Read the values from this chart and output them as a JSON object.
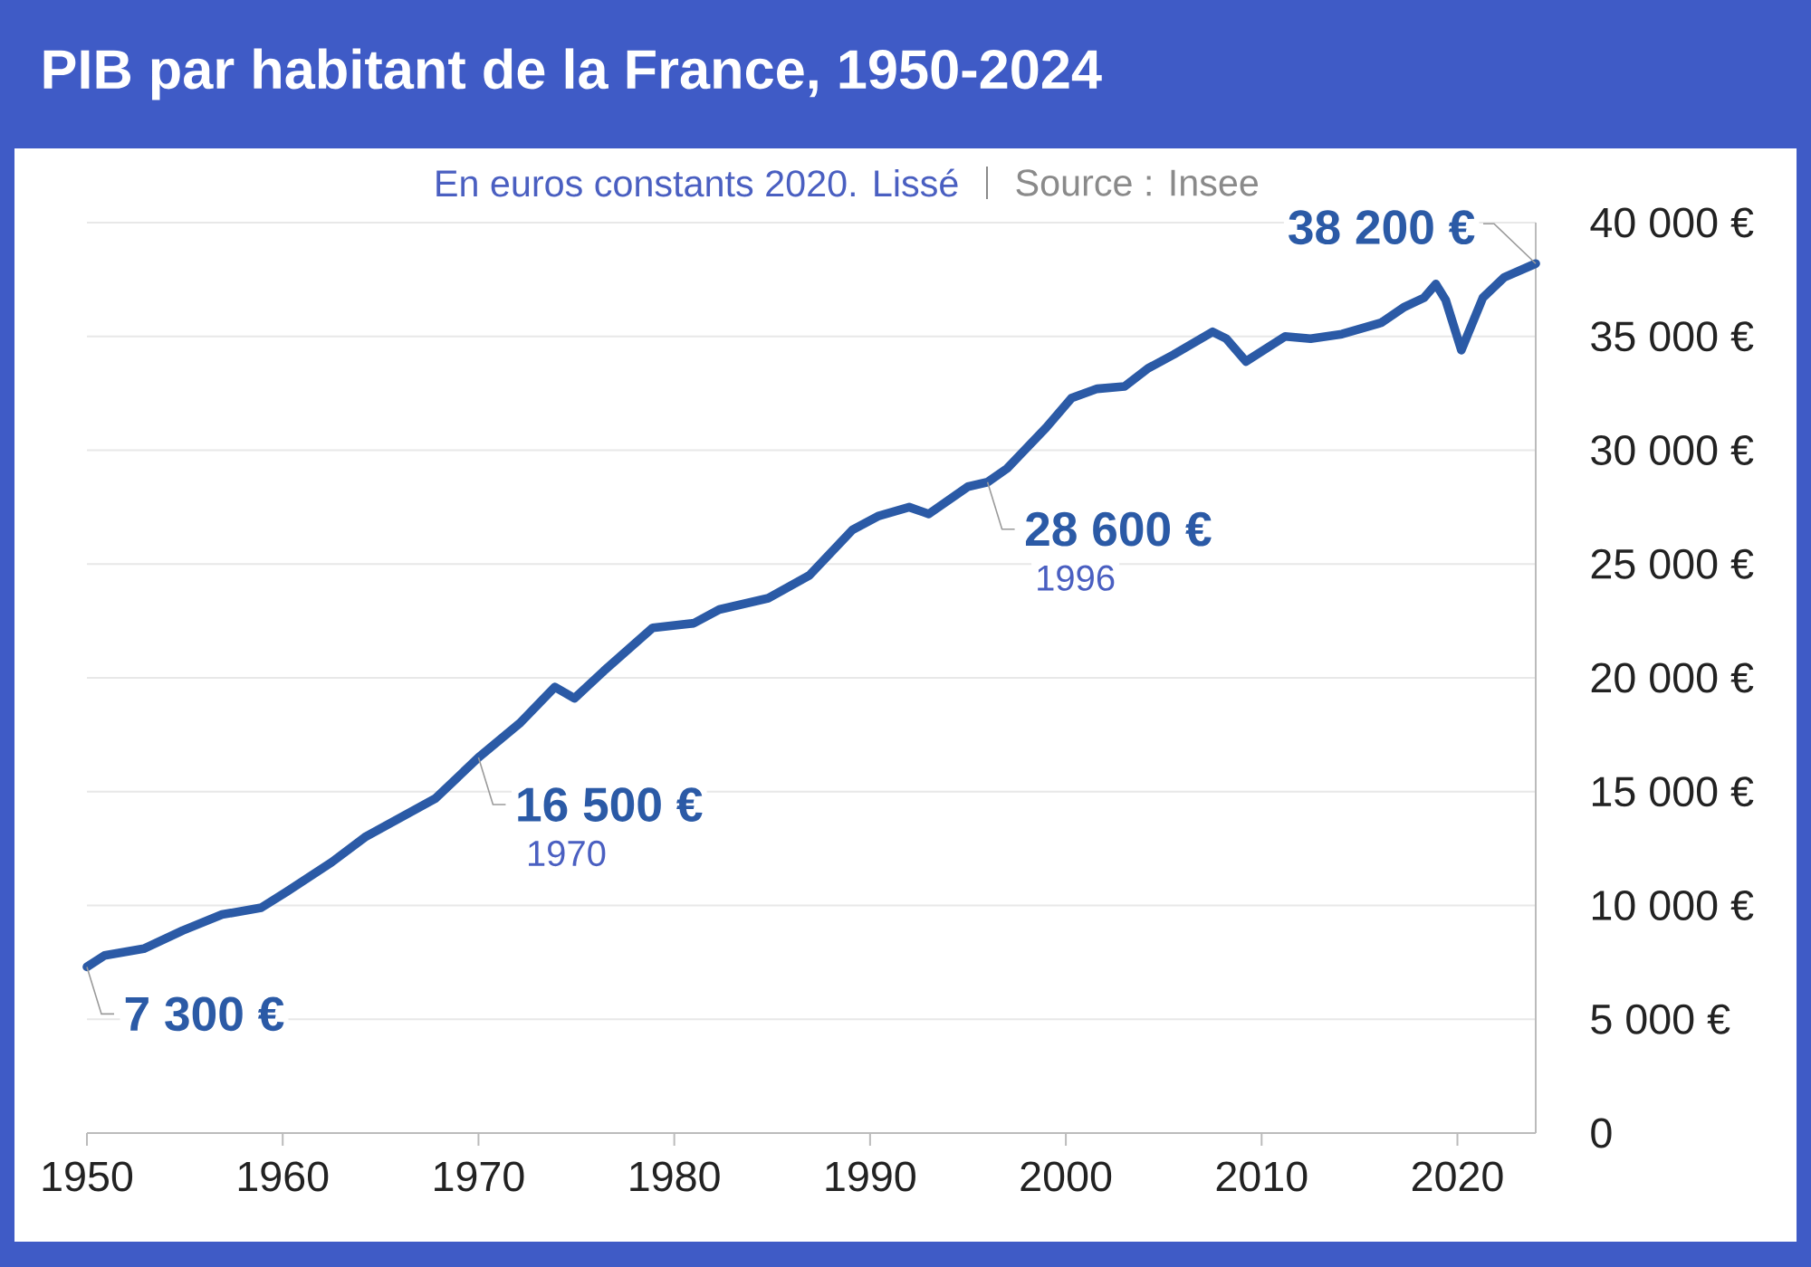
{
  "chart_data": {
    "type": "line",
    "title": "PIB par habitant de la France, 1950-2024",
    "subtitle": "En euros constants 2020. Lissé",
    "x": [
      1950,
      1950.9,
      1952.9,
      1954.9,
      1956.9,
      1958.9,
      1960.2,
      1962.5,
      1964.2,
      1967.8,
      1970,
      1972.1,
      1973.9,
      1974.9,
      1976.4,
      1978.9,
      1981,
      1982.3,
      1984.8,
      1986.9,
      1989.1,
      1990.4,
      1992,
      1993,
      1995,
      1996,
      1997,
      1999,
      2000.3,
      2001.6,
      2003,
      2004.2,
      2005.5,
      2007.5,
      2008.2,
      2009.2,
      2011.2,
      2012.5,
      2014.1,
      2016.1,
      2017.3,
      2018.3,
      2018.9,
      2019.4,
      2020.2,
      2021.3,
      2022.4,
      2024
    ],
    "series": [
      {
        "color": "#2b5aa6",
        "values": [
          7300,
          7800,
          8100,
          8900,
          9600,
          9900,
          10600,
          11900,
          13000,
          14700,
          16500,
          18000,
          19600,
          19100,
          20300,
          22200,
          22400,
          23000,
          23500,
          24500,
          26500,
          27100,
          27500,
          27200,
          28400,
          28600,
          29200,
          31000,
          32300,
          32700,
          32800,
          33600,
          34200,
          35200,
          34900,
          33900,
          35000,
          34900,
          35100,
          35600,
          36300,
          36700,
          37300,
          36600,
          34400,
          36700,
          37600,
          38200
        ]
      }
    ],
    "line_style": "solid",
    "xlim": [
      1950,
      2024
    ],
    "xticks": [
      1950,
      1960,
      1970,
      1980,
      1990,
      2000,
      2010,
      2020
    ],
    "ylim": [
      0,
      40000
    ],
    "yticks": [
      0,
      {
        "value": 5000,
        "label": "5 000 €"
      },
      {
        "value": 10000,
        "label": "10 000 €"
      },
      {
        "value": 15000,
        "label": "15 000 €"
      },
      {
        "value": 20000,
        "label": "20 000 €"
      },
      {
        "value": 25000,
        "label": "25 000 €"
      },
      {
        "value": 30000,
        "label": "30 000 €"
      },
      {
        "value": 35000,
        "label": "35 000 €"
      },
      {
        "value": 40000,
        "label": "40 000 €"
      }
    ],
    "grid": "y",
    "annotations": [
      {
        "text": "7 300 €",
        "x": 1950,
        "y": 7300
      },
      {
        "text": "16 500 €",
        "x": 1970,
        "y": 16500
      },
      {
        "text": "1970",
        "x": 1970,
        "y": 16500
      },
      {
        "text": "28 600 €",
        "x": 1996,
        "y": 28600
      },
      {
        "text": "1996",
        "x": 1996,
        "y": 28600
      },
      {
        "text": "38 200 €",
        "x": 2024,
        "y": 38200
      },
      "Source : Insee"
    ]
  }
}
